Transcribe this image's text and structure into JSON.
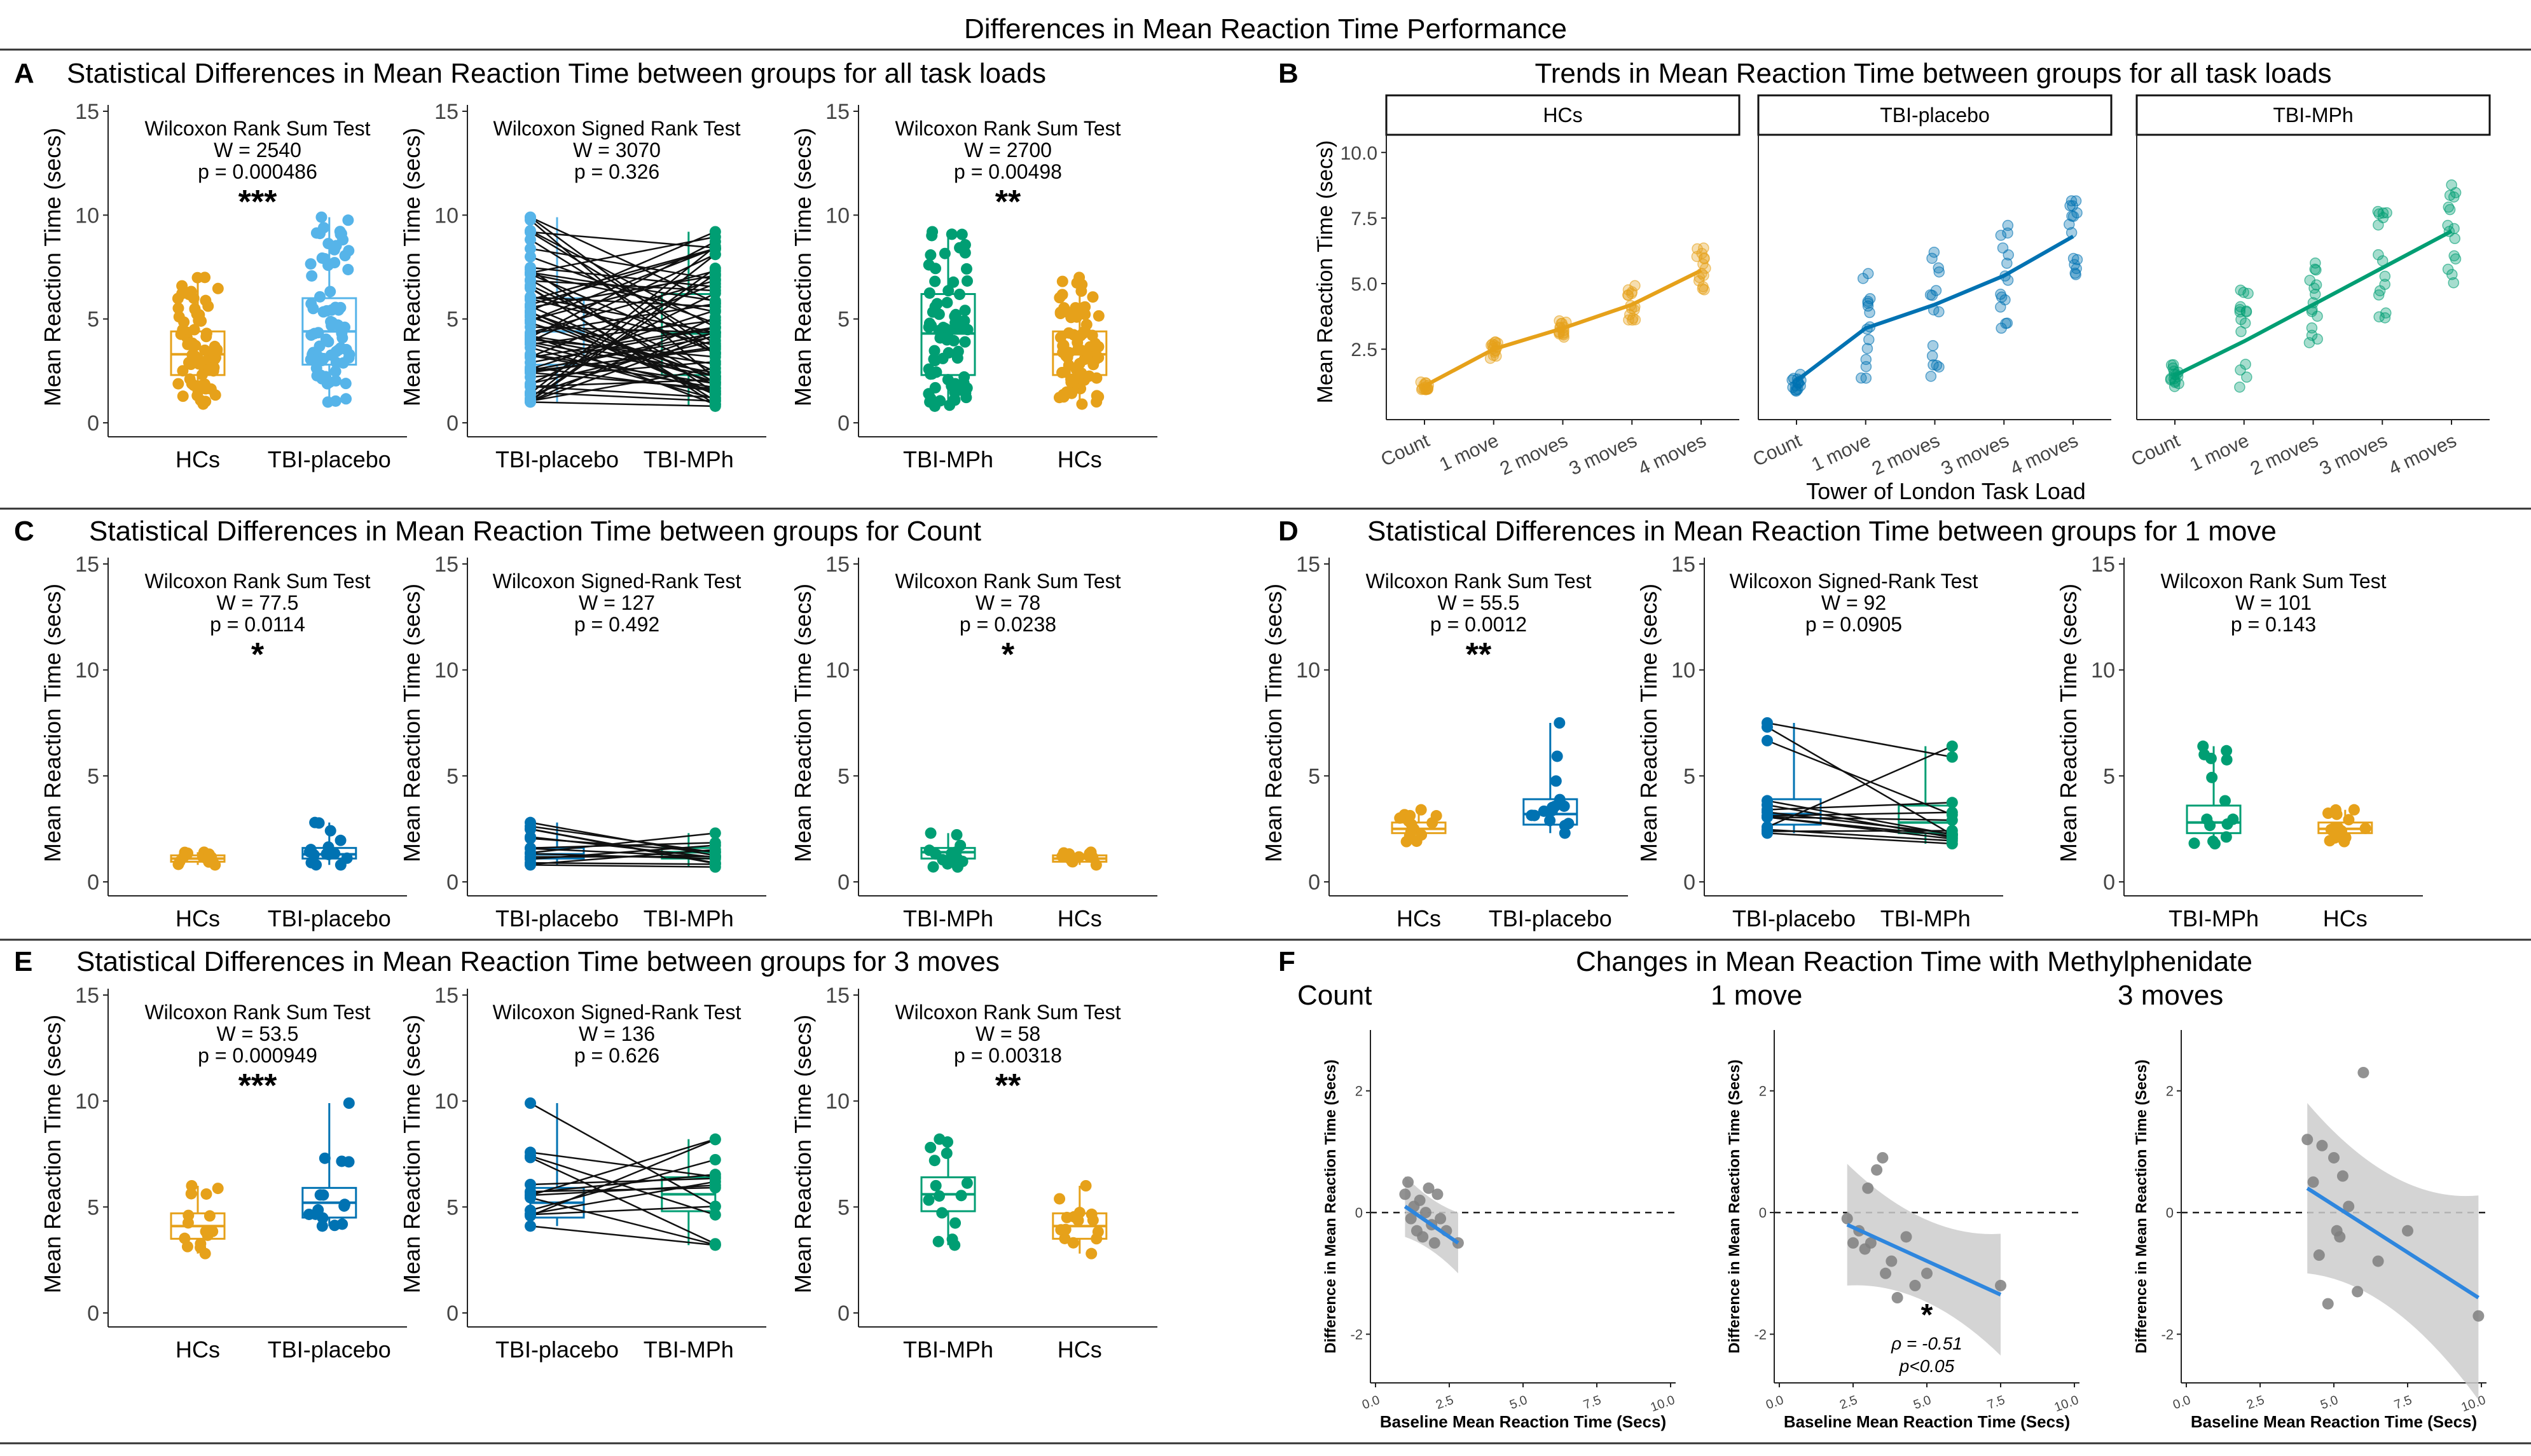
{
  "figure_title": "Differences in Mean Reaction Time Performance",
  "colors": {
    "HCs": "#E6A11A",
    "TBI-placebo": "#56B4E9",
    "TBI-placebo-dark": "#0072B2",
    "TBI-MPh": "#009E73",
    "grey": "#7f7f7f",
    "band": "#cccccc"
  },
  "panels": {
    "A": {
      "letter": "A",
      "title": "Statistical Differences in Mean Reaction Time between groups for all task loads"
    },
    "B": {
      "letter": "B",
      "title": "Trends in Mean Reaction Time between groups for all task loads"
    },
    "C": {
      "letter": "C",
      "title": "Statistical Differences in Mean Reaction Time between groups for Count"
    },
    "D": {
      "letter": "D",
      "title": "Statistical Differences in Mean Reaction Time between groups for 1 move"
    },
    "E": {
      "letter": "E",
      "title": "Statistical Differences in Mean Reaction Time between groups for 3 moves"
    },
    "F": {
      "letter": "F",
      "title": "Changes in Mean Reaction Time with Methylphenidate"
    }
  },
  "chart_data": [
    {
      "id": "A1",
      "type": "box",
      "ylabel": "Mean Reaction Time (secs)",
      "ylim": [
        0,
        15
      ],
      "yticks": [
        0,
        5,
        10,
        15
      ],
      "paired": false,
      "categories": [
        "HCs",
        "TBI-placebo"
      ],
      "group_colors": [
        "HCs",
        "TBI-placebo"
      ],
      "boxes": [
        {
          "q1": 2.3,
          "median": 3.3,
          "q3": 4.4,
          "lo": 0.9,
          "hi": 7.0
        },
        {
          "q1": 2.8,
          "median": 4.4,
          "q3": 6.0,
          "lo": 1.0,
          "hi": 9.9
        }
      ],
      "n": 75,
      "test": "Wilcoxon Rank Sum Test",
      "stat": "W = 2540",
      "p": "p = 0.000486",
      "sig": "***"
    },
    {
      "id": "A2",
      "type": "box",
      "ylabel": "Mean Reaction Time (secs)",
      "ylim": [
        0,
        15
      ],
      "yticks": [
        0,
        5,
        10,
        15
      ],
      "paired": true,
      "categories": [
        "TBI-placebo",
        "TBI-MPh"
      ],
      "group_colors": [
        "TBI-placebo",
        "TBI-MPh"
      ],
      "boxes": [
        {
          "q1": 2.8,
          "median": 4.4,
          "q3": 6.0,
          "lo": 1.0,
          "hi": 9.9
        },
        {
          "q1": 2.3,
          "median": 4.3,
          "q3": 6.2,
          "lo": 0.8,
          "hi": 9.2
        }
      ],
      "n": 75,
      "test": "Wilcoxon Signed Rank Test",
      "stat": "W = 3070",
      "p": "p = 0.326",
      "sig": ""
    },
    {
      "id": "A3",
      "type": "box",
      "ylabel": "Mean Reaction Time (secs)",
      "ylim": [
        0,
        15
      ],
      "yticks": [
        0,
        5,
        10,
        15
      ],
      "paired": false,
      "categories": [
        "TBI-MPh",
        "HCs"
      ],
      "group_colors": [
        "TBI-MPh",
        "HCs"
      ],
      "boxes": [
        {
          "q1": 2.3,
          "median": 4.3,
          "q3": 6.2,
          "lo": 0.8,
          "hi": 9.2
        },
        {
          "q1": 2.3,
          "median": 3.3,
          "q3": 4.4,
          "lo": 0.9,
          "hi": 7.0
        }
      ],
      "n": 75,
      "test": "Wilcoxon Rank Sum Test",
      "stat": "W = 2700",
      "p": "p = 0.00498",
      "sig": "**"
    },
    {
      "id": "B",
      "type": "line",
      "xlabel": "Tower of London Task Load",
      "ylabel": "Mean Reaction Time (secs)",
      "ylim": [
        0.3,
        10.6
      ],
      "yticks": [
        2.5,
        5.0,
        7.5,
        10.0
      ],
      "ytick_labels": [
        "2.5",
        "5.0",
        "7.5",
        "10.0"
      ],
      "categories": [
        "Count",
        "1 move",
        "2 moves",
        "3 moves",
        "4 moves"
      ],
      "facets": [
        {
          "name": "HCs",
          "color": "HCs",
          "values": [
            1.1,
            2.5,
            3.3,
            4.2,
            5.5
          ],
          "spread": [
            0.3,
            0.7,
            0.7,
            1.5,
            1.8
          ]
        },
        {
          "name": "TBI-placebo",
          "color": "TBI-placebo-dark",
          "values": [
            1.3,
            3.3,
            4.2,
            5.3,
            6.8
          ],
          "spread": [
            0.8,
            4.3,
            5.5,
            4.7,
            3.0
          ]
        },
        {
          "name": "TBI-MPh",
          "color": "TBI-MPh",
          "values": [
            1.5,
            2.8,
            4.2,
            5.6,
            7.0
          ],
          "spread": [
            1.0,
            4.0,
            3.5,
            4.5,
            4.0
          ]
        }
      ]
    },
    {
      "id": "C1",
      "type": "box",
      "ylabel": "Mean Reaction Time (secs)",
      "ylim": [
        0,
        15
      ],
      "yticks": [
        0,
        5,
        10,
        15
      ],
      "paired": false,
      "categories": [
        "HCs",
        "TBI-placebo"
      ],
      "group_colors": [
        "HCs",
        "TBI-placebo-dark"
      ],
      "boxes": [
        {
          "q1": 0.95,
          "median": 1.1,
          "q3": 1.25,
          "lo": 0.8,
          "hi": 1.4
        },
        {
          "q1": 1.1,
          "median": 1.3,
          "q3": 1.6,
          "lo": 0.8,
          "hi": 2.8
        }
      ],
      "n": 15,
      "test": "Wilcoxon Rank Sum Test",
      "stat": "W = 77.5",
      "p": "p = 0.0114",
      "sig": "*"
    },
    {
      "id": "C2",
      "type": "box",
      "ylabel": "Mean Reaction Time (secs)",
      "ylim": [
        0,
        15
      ],
      "yticks": [
        0,
        5,
        10,
        15
      ],
      "paired": true,
      "categories": [
        "TBI-placebo",
        "TBI-MPh"
      ],
      "group_colors": [
        "TBI-placebo-dark",
        "TBI-MPh"
      ],
      "boxes": [
        {
          "q1": 1.1,
          "median": 1.3,
          "q3": 1.6,
          "lo": 0.8,
          "hi": 2.8
        },
        {
          "q1": 1.1,
          "median": 1.4,
          "q3": 1.6,
          "lo": 0.7,
          "hi": 2.3
        }
      ],
      "n": 15,
      "test": "Wilcoxon Signed-Rank Test",
      "stat": "W = 127",
      "p": "p = 0.492",
      "sig": ""
    },
    {
      "id": "C3",
      "type": "box",
      "ylabel": "Mean Reaction Time (secs)",
      "ylim": [
        0,
        15
      ],
      "yticks": [
        0,
        5,
        10,
        15
      ],
      "paired": false,
      "categories": [
        "TBI-MPh",
        "HCs"
      ],
      "group_colors": [
        "TBI-MPh",
        "HCs"
      ],
      "boxes": [
        {
          "q1": 1.1,
          "median": 1.4,
          "q3": 1.6,
          "lo": 0.7,
          "hi": 2.3
        },
        {
          "q1": 0.95,
          "median": 1.1,
          "q3": 1.25,
          "lo": 0.8,
          "hi": 1.4
        }
      ],
      "n": 15,
      "test": "Wilcoxon Rank Sum Test",
      "stat": "W = 78",
      "p": "p = 0.0238",
      "sig": "*"
    },
    {
      "id": "D1",
      "type": "box",
      "ylabel": "Mean Reaction Time (secs)",
      "ylim": [
        0,
        15
      ],
      "yticks": [
        0,
        5,
        10,
        15
      ],
      "paired": false,
      "categories": [
        "HCs",
        "TBI-placebo"
      ],
      "group_colors": [
        "HCs",
        "TBI-placebo-dark"
      ],
      "boxes": [
        {
          "q1": 2.3,
          "median": 2.5,
          "q3": 2.8,
          "lo": 1.9,
          "hi": 3.4
        },
        {
          "q1": 2.7,
          "median": 3.2,
          "q3": 3.9,
          "lo": 2.3,
          "hi": 7.5
        }
      ],
      "n": 15,
      "test": "Wilcoxon Rank Sum Test",
      "stat": "W = 55.5",
      "p": "p = 0.0012",
      "sig": "**"
    },
    {
      "id": "D2",
      "type": "box",
      "ylabel": "Mean Reaction Time (secs)",
      "ylim": [
        0,
        15
      ],
      "yticks": [
        0,
        5,
        10,
        15
      ],
      "paired": true,
      "categories": [
        "TBI-placebo",
        "TBI-MPh"
      ],
      "group_colors": [
        "TBI-placebo-dark",
        "TBI-MPh"
      ],
      "boxes": [
        {
          "q1": 2.7,
          "median": 3.2,
          "q3": 3.9,
          "lo": 2.3,
          "hi": 7.5
        },
        {
          "q1": 2.3,
          "median": 2.8,
          "q3": 3.6,
          "lo": 1.8,
          "hi": 6.4
        }
      ],
      "n": 15,
      "test": "Wilcoxon Signed-Rank Test",
      "stat": "W = 92",
      "p": "p = 0.0905",
      "sig": ""
    },
    {
      "id": "D3",
      "type": "box",
      "ylabel": "Mean Reaction Time (secs)",
      "ylim": [
        0,
        15
      ],
      "yticks": [
        0,
        5,
        10,
        15
      ],
      "paired": false,
      "categories": [
        "TBI-MPh",
        "HCs"
      ],
      "group_colors": [
        "TBI-MPh",
        "HCs"
      ],
      "boxes": [
        {
          "q1": 2.3,
          "median": 2.8,
          "q3": 3.6,
          "lo": 1.8,
          "hi": 6.4
        },
        {
          "q1": 2.3,
          "median": 2.5,
          "q3": 2.8,
          "lo": 1.9,
          "hi": 3.4
        }
      ],
      "n": 15,
      "test": "Wilcoxon Rank Sum Test",
      "stat": "W = 101",
      "p": "p = 0.143",
      "sig": ""
    },
    {
      "id": "E1",
      "type": "box",
      "ylabel": "Mean Reaction Time (secs)",
      "ylim": [
        0,
        15
      ],
      "yticks": [
        0,
        5,
        10,
        15
      ],
      "paired": false,
      "categories": [
        "HCs",
        "TBI-placebo"
      ],
      "group_colors": [
        "HCs",
        "TBI-placebo-dark"
      ],
      "boxes": [
        {
          "q1": 3.5,
          "median": 4.1,
          "q3": 4.7,
          "lo": 2.8,
          "hi": 6.0
        },
        {
          "q1": 4.5,
          "median": 5.2,
          "q3": 5.9,
          "lo": 4.1,
          "hi": 9.9
        }
      ],
      "n": 15,
      "test": "Wilcoxon Rank Sum Test",
      "stat": "W = 53.5",
      "p": "p = 0.000949",
      "sig": "***"
    },
    {
      "id": "E2",
      "type": "box",
      "ylabel": "Mean Reaction Time (secs)",
      "ylim": [
        0,
        15
      ],
      "yticks": [
        0,
        5,
        10,
        15
      ],
      "paired": true,
      "categories": [
        "TBI-placebo",
        "TBI-MPh"
      ],
      "group_colors": [
        "TBI-placebo-dark",
        "TBI-MPh"
      ],
      "boxes": [
        {
          "q1": 4.5,
          "median": 5.2,
          "q3": 5.9,
          "lo": 4.1,
          "hi": 9.9
        },
        {
          "q1": 4.8,
          "median": 5.6,
          "q3": 6.4,
          "lo": 3.2,
          "hi": 8.2
        }
      ],
      "n": 15,
      "test": "Wilcoxon Signed-Rank Test",
      "stat": "W = 136",
      "p": "p = 0.626",
      "sig": ""
    },
    {
      "id": "E3",
      "type": "box",
      "ylabel": "Mean Reaction Time (secs)",
      "ylim": [
        0,
        15
      ],
      "yticks": [
        0,
        5,
        10,
        15
      ],
      "paired": false,
      "categories": [
        "TBI-MPh",
        "HCs"
      ],
      "group_colors": [
        "TBI-MPh",
        "HCs"
      ],
      "boxes": [
        {
          "q1": 4.8,
          "median": 5.6,
          "q3": 6.4,
          "lo": 3.2,
          "hi": 8.2
        },
        {
          "q1": 3.5,
          "median": 4.1,
          "q3": 4.7,
          "lo": 2.8,
          "hi": 6.0
        }
      ],
      "n": 15,
      "test": "Wilcoxon Rank Sum Test",
      "stat": "W = 58",
      "p": "p = 0.00318",
      "sig": "**"
    },
    {
      "id": "F1",
      "type": "scatter",
      "title": "Count",
      "xlabel": "Baseline Mean Reaction Time (Secs)",
      "ylabel": "Difference in Mean Reaction Time (Secs)",
      "xlim": [
        0,
        10
      ],
      "ylim": [
        -2.8,
        3.0
      ],
      "xticks": [
        0,
        2.5,
        5,
        7.5,
        10
      ],
      "xtick_labels": [
        "0.0",
        "2.5",
        "5.0",
        "7.5",
        "10.0"
      ],
      "yticks": [
        -2,
        0,
        2
      ],
      "ytick_labels": [
        "-2",
        "0",
        "2"
      ],
      "points": [
        [
          1.0,
          0.3
        ],
        [
          1.1,
          0.5
        ],
        [
          1.2,
          -0.1
        ],
        [
          1.3,
          0.1
        ],
        [
          1.4,
          -0.3
        ],
        [
          1.5,
          0.2
        ],
        [
          1.6,
          -0.4
        ],
        [
          1.7,
          0.0
        ],
        [
          1.8,
          0.4
        ],
        [
          1.9,
          -0.2
        ],
        [
          2.0,
          -0.5
        ],
        [
          2.1,
          0.3
        ],
        [
          2.2,
          -0.1
        ],
        [
          2.4,
          -0.3
        ],
        [
          2.8,
          -0.5
        ]
      ],
      "fit": [
        [
          1.0,
          0.1
        ],
        [
          2.8,
          -0.5
        ]
      ],
      "band": [
        0.3,
        0.5
      ],
      "annotation": []
    },
    {
      "id": "F2",
      "type": "scatter",
      "title": "1 move",
      "xlabel": "Baseline Mean Reaction Time (Secs)",
      "ylabel": "Difference in Mean Reaction Time (Secs)",
      "xlim": [
        0,
        10
      ],
      "ylim": [
        -2.8,
        3.0
      ],
      "xticks": [
        0,
        2.5,
        5,
        7.5,
        10
      ],
      "xtick_labels": [
        "0.0",
        "2.5",
        "5.0",
        "7.5",
        "10.0"
      ],
      "yticks": [
        -2,
        0,
        2
      ],
      "ytick_labels": [
        "-2",
        "0",
        "2"
      ],
      "points": [
        [
          2.3,
          -0.1
        ],
        [
          2.5,
          -0.5
        ],
        [
          2.7,
          -0.3
        ],
        [
          2.9,
          -0.6
        ],
        [
          3.0,
          0.4
        ],
        [
          3.1,
          -0.5
        ],
        [
          3.3,
          0.7
        ],
        [
          3.5,
          0.9
        ],
        [
          3.6,
          -1.0
        ],
        [
          3.8,
          -0.8
        ],
        [
          4.0,
          -1.4
        ],
        [
          4.3,
          -0.4
        ],
        [
          4.6,
          -1.2
        ],
        [
          5.0,
          -1.0
        ],
        [
          7.5,
          -1.2
        ]
      ],
      "fit": [
        [
          2.3,
          -0.2
        ],
        [
          7.5,
          -1.35
        ]
      ],
      "band": [
        0.3,
        1.0
      ],
      "annotation": [
        "*",
        "ρ  = -0.51",
        "p<0.05"
      ]
    },
    {
      "id": "F3",
      "type": "scatter",
      "title": "3 moves",
      "xlabel": "Baseline Mean Reaction Time (Secs)",
      "ylabel": "Difference in Mean Reaction Time (Secs)",
      "xlim": [
        0,
        10
      ],
      "ylim": [
        -2.8,
        3.0
      ],
      "xticks": [
        0,
        2.5,
        5,
        7.5,
        10
      ],
      "xtick_labels": [
        "0.0",
        "2.5",
        "5.0",
        "7.5",
        "10.0"
      ],
      "yticks": [
        -2,
        0,
        2
      ],
      "ytick_labels": [
        "-2",
        "0",
        "2"
      ],
      "points": [
        [
          4.1,
          1.2
        ],
        [
          4.3,
          0.5
        ],
        [
          4.5,
          -0.7
        ],
        [
          4.6,
          1.1
        ],
        [
          4.8,
          -1.5
        ],
        [
          5.0,
          0.9
        ],
        [
          5.1,
          -0.3
        ],
        [
          5.2,
          -0.4
        ],
        [
          5.3,
          0.6
        ],
        [
          5.5,
          0.1
        ],
        [
          5.8,
          -1.3
        ],
        [
          6.0,
          2.3
        ],
        [
          6.5,
          -0.8
        ],
        [
          7.5,
          -0.3
        ],
        [
          9.9,
          -1.7
        ]
      ],
      "fit": [
        [
          4.1,
          0.4
        ],
        [
          9.9,
          -1.4
        ]
      ],
      "band": [
        0.6,
        1.4
      ],
      "annotation": []
    }
  ]
}
